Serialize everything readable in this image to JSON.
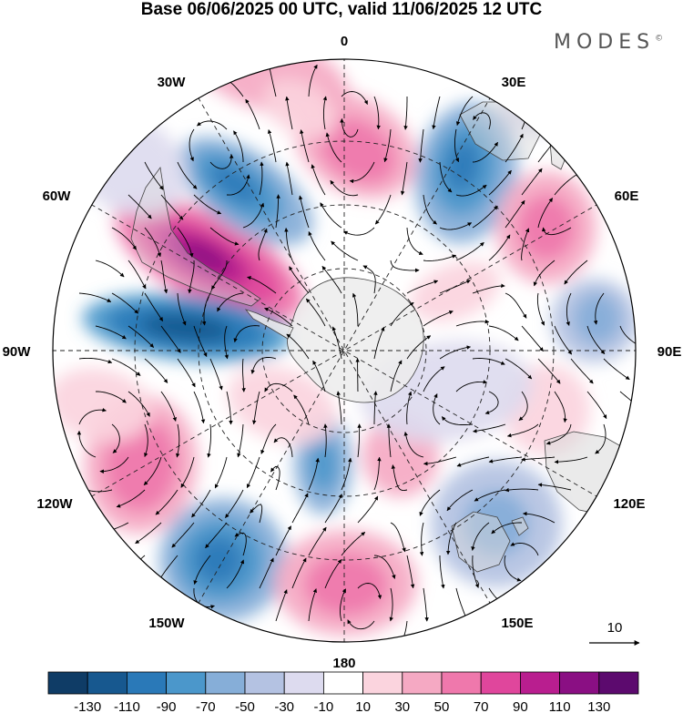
{
  "title": "Base 06/06/2025 00 UTC, valid 11/06/2025 12 UTC",
  "brand": "MODES",
  "brand_mark": "©",
  "map": {
    "projection": "polar-stereographic-south",
    "longitude_labels": [
      "0",
      "30E",
      "60E",
      "90E",
      "120E",
      "150E",
      "180",
      "150W",
      "120W",
      "90W",
      "60W",
      "30W"
    ]
  },
  "vector_reference": {
    "label": "10"
  },
  "colorbar": {
    "ticks": [
      "-130",
      "-110",
      "-90",
      "-70",
      "-50",
      "-30",
      "-10",
      "10",
      "30",
      "50",
      "70",
      "90",
      "110",
      "130"
    ],
    "colors": [
      "#0f3c66",
      "#17588f",
      "#2a79b8",
      "#4b97cb",
      "#86aed8",
      "#b4c2e2",
      "#dddbef",
      "#ffffff",
      "#fbd4de",
      "#f5a9c3",
      "#ef78ac",
      "#e0469c",
      "#b91e8f",
      "#8a0f83",
      "#5c0a6e"
    ]
  }
}
